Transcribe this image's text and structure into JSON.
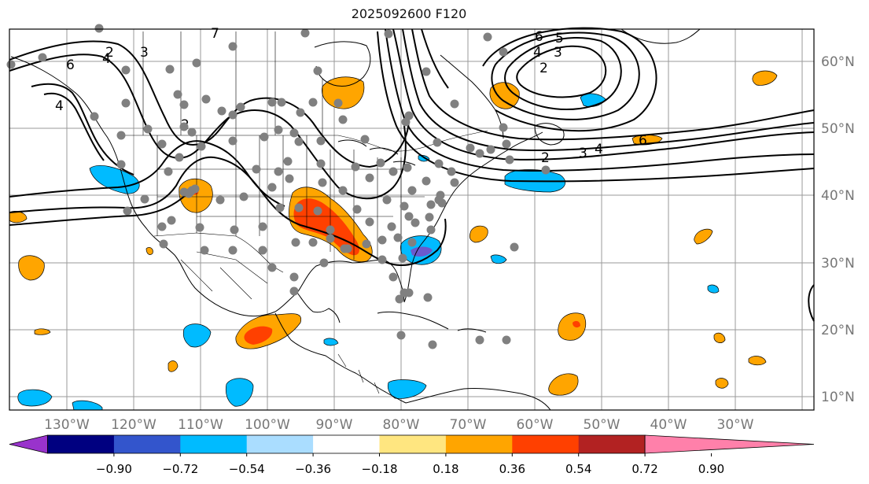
{
  "title": "2025092600 F120",
  "lon_labels": [
    "130°W",
    "120°W",
    "110°W",
    "100°W",
    "90°W",
    "80°W",
    "70°W",
    "60°W",
    "50°W",
    "40°W",
    "30°W"
  ],
  "lat_labels": [
    "60°N",
    "50°N",
    "40°N",
    "30°N",
    "20°N",
    "10°N"
  ],
  "colorbar": {
    "tick_labels": [
      "−0.90",
      "−0.72",
      "−0.54",
      "−0.36",
      "−0.18",
      "0.18",
      "0.36",
      "0.54",
      "0.72",
      "0.90"
    ],
    "colors": [
      "#9933cc",
      "#000080",
      "#3355cc",
      "#00bbff",
      "#aaddff",
      "#ffffff",
      "#ffe680",
      "#ffa500",
      "#ff4000",
      "#b22222",
      "#ff80aa"
    ]
  },
  "contour_labels": [
    {
      "text": "6"
    },
    {
      "text": "4"
    },
    {
      "text": "2"
    },
    {
      "text": "3"
    },
    {
      "text": "4"
    },
    {
      "text": "7"
    },
    {
      "text": "2"
    },
    {
      "text": "6"
    },
    {
      "text": "5"
    },
    {
      "text": "4"
    },
    {
      "text": "3"
    },
    {
      "text": "2"
    },
    {
      "text": "6"
    },
    {
      "text": "4"
    },
    {
      "text": "3"
    },
    {
      "text": "2"
    }
  ],
  "fill_colors": {
    "orange": "#ffa500",
    "red": "#ff4000",
    "blue": "#00bbff",
    "purple": "#6a5acd"
  }
}
